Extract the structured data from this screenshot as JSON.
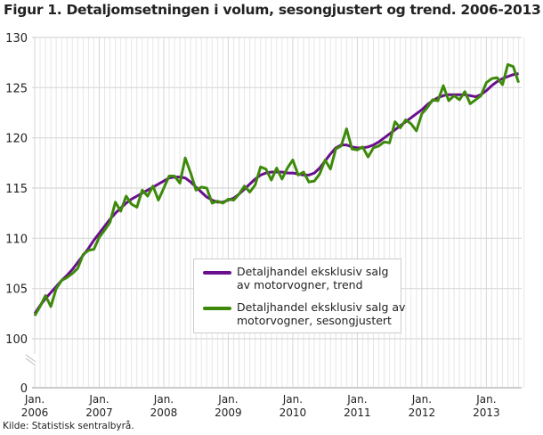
{
  "title": "Figur 1. Detaljomsetningen i volum, sesongjustert og trend. 2006-2013",
  "source": "Kilde: Statistisk sentralbyrå.",
  "chart_data": {
    "type": "line",
    "title": "Figur 1. Detaljomsetningen i volum, sesongjustert og trend. 2006-2013",
    "x_start": "2006-01",
    "x_frequency": "monthly",
    "x_ticks": [
      [
        "Jan.",
        "2006"
      ],
      [
        "Jan.",
        "2007"
      ],
      [
        "Jan.",
        "2008"
      ],
      [
        "Jan.",
        "2009"
      ],
      [
        "Jan.",
        "2010"
      ],
      [
        "Jan.",
        "2011"
      ],
      [
        "Jan.",
        "2012"
      ],
      [
        "Jan.",
        "2013"
      ]
    ],
    "y_ticks": [
      "0",
      "100",
      "105",
      "110",
      "115",
      "120",
      "125",
      "130"
    ],
    "ylim": [
      100,
      130
    ],
    "y_axis_break": true,
    "grid": true,
    "legend_position": "center-right",
    "series": [
      {
        "name": "Detaljhandel eksklusiv salg av motorvogner, trend",
        "color": "#6a0f8e",
        "values": [
          102.5,
          103.3,
          104.0,
          104.6,
          105.2,
          105.8,
          106.3,
          106.9,
          107.6,
          108.3,
          109.0,
          109.8,
          110.5,
          111.2,
          111.9,
          112.5,
          113.0,
          113.5,
          113.9,
          114.2,
          114.5,
          114.8,
          115.1,
          115.4,
          115.7,
          116.0,
          116.1,
          116.1,
          116.0,
          115.6,
          115.1,
          114.6,
          114.1,
          113.8,
          113.6,
          113.6,
          113.8,
          114.0,
          114.4,
          114.9,
          115.4,
          115.9,
          116.3,
          116.5,
          116.6,
          116.6,
          116.6,
          116.5,
          116.5,
          116.4,
          116.3,
          116.3,
          116.5,
          117.0,
          117.7,
          118.4,
          119.0,
          119.3,
          119.3,
          119.1,
          119.0,
          119.0,
          119.1,
          119.3,
          119.6,
          120.0,
          120.4,
          120.8,
          121.2,
          121.6,
          122.0,
          122.4,
          122.8,
          123.3,
          123.7,
          124.0,
          124.2,
          124.3,
          124.3,
          124.3,
          124.3,
          124.2,
          124.1,
          124.3,
          124.7,
          125.2,
          125.6,
          125.9,
          126.1,
          126.3,
          126.4
        ]
      },
      {
        "name": "Detaljhandel eksklusiv salg av motorvogner, sesongjustert",
        "color": "#3d8a0a",
        "values": [
          102.3,
          103.2,
          104.3,
          103.2,
          105.0,
          105.8,
          106.1,
          106.5,
          107.0,
          108.4,
          108.8,
          108.9,
          110.1,
          110.8,
          111.6,
          113.6,
          112.7,
          114.2,
          113.4,
          113.1,
          114.8,
          114.2,
          115.2,
          113.8,
          115.0,
          116.2,
          116.2,
          115.5,
          118.0,
          116.5,
          114.8,
          115.1,
          115.0,
          113.5,
          113.7,
          113.5,
          113.9,
          113.8,
          114.4,
          115.2,
          114.6,
          115.3,
          117.1,
          116.9,
          115.8,
          117.0,
          115.9,
          117.0,
          117.8,
          116.3,
          116.6,
          115.6,
          115.7,
          116.4,
          117.8,
          116.9,
          118.9,
          119.2,
          120.9,
          118.9,
          118.8,
          119.1,
          118.1,
          119.0,
          119.2,
          119.6,
          119.5,
          121.6,
          121.0,
          121.8,
          121.4,
          120.7,
          122.4,
          123.0,
          123.8,
          123.7,
          125.2,
          123.7,
          124.2,
          123.8,
          124.6,
          123.4,
          123.8,
          124.2,
          125.5,
          125.9,
          126.0,
          125.3,
          127.3,
          127.1,
          125.5
        ]
      }
    ]
  }
}
